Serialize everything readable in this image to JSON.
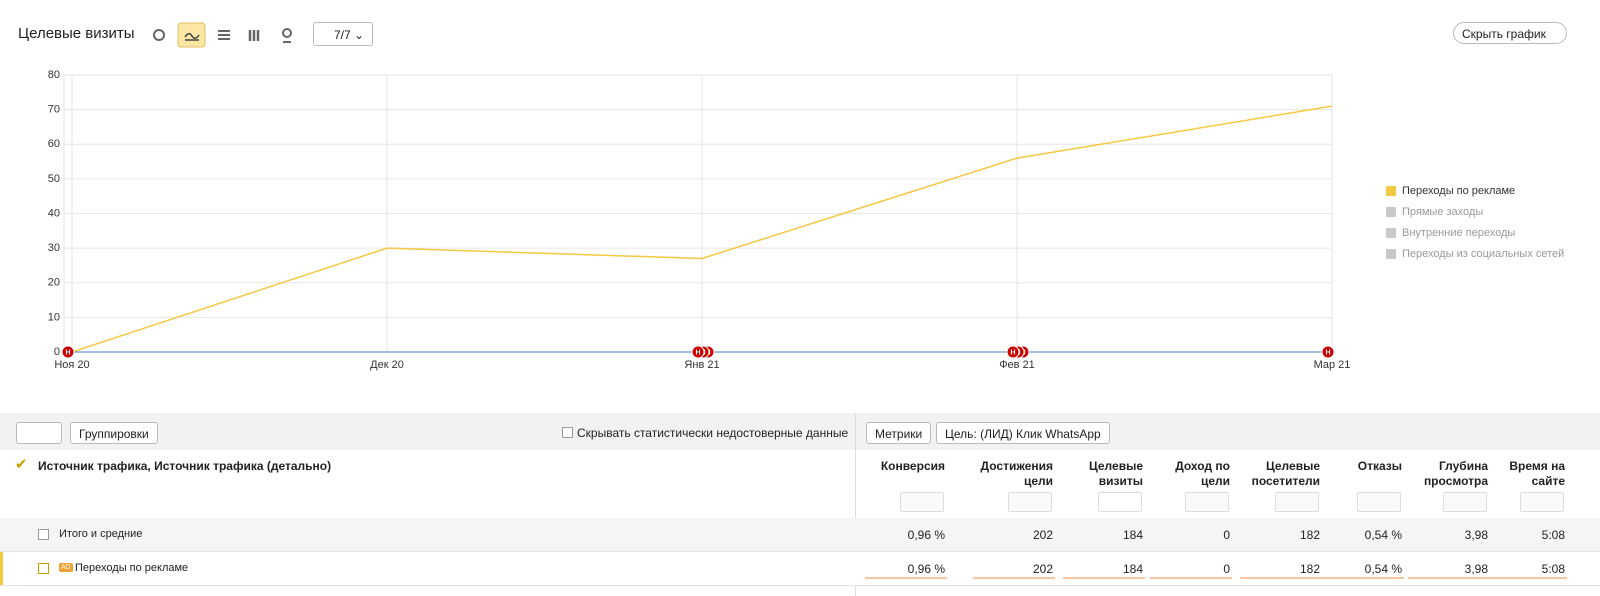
{
  "header": {
    "title": "Целевые визиты",
    "segments_button": "7/7",
    "hide_chart_button": "Скрыть график"
  },
  "chart_data": {
    "type": "line",
    "categories": [
      "Ноя 20",
      "Дек 20",
      "Янв 21",
      "Фев 21",
      "Мар 21"
    ],
    "series": [
      {
        "name": "Переходы по рекламе",
        "color": "#f3c843",
        "values": [
          0,
          30,
          27,
          56,
          71
        ]
      }
    ],
    "legend": [
      {
        "name": "Переходы по рекламе",
        "checked": true
      },
      {
        "name": "Прямые заходы",
        "checked": false
      },
      {
        "name": "Внутренние переходы",
        "checked": false
      },
      {
        "name": "Переходы из социальных сетей",
        "checked": false
      }
    ],
    "annotation": "Н",
    "ylim": [
      0,
      80
    ],
    "yticks": [
      0,
      10,
      20,
      30,
      40,
      50,
      60,
      70,
      80
    ],
    "grid": true
  },
  "toolbar": {
    "groupings": "Группировки",
    "hide_unreliable": "Скрывать статистически недостоверные данные",
    "metrics": "Метрики",
    "goal": "Цель: (ЛИД) Клик WhatsApp"
  },
  "table": {
    "dimension_header": "Источник трафика, Источник трафика (детально)",
    "columns": [
      "Конверсия",
      "Достижения цели",
      "Целевые визиты",
      "Доход по цели",
      "Целевые посетители",
      "Отказы",
      "Глубина просмотра",
      "Время на сайте"
    ],
    "rows": [
      {
        "label": "Итого и средние",
        "cells": [
          "0,96 %",
          "202",
          "184",
          "0",
          "182",
          "0,54 %",
          "3,98",
          "5:08"
        ]
      },
      {
        "label": "Переходы по рекламе",
        "badge": "AD",
        "cells": [
          "0,96 %",
          "202",
          "184",
          "0",
          "182",
          "0,54 %",
          "3,98",
          "5:08"
        ]
      }
    ]
  }
}
